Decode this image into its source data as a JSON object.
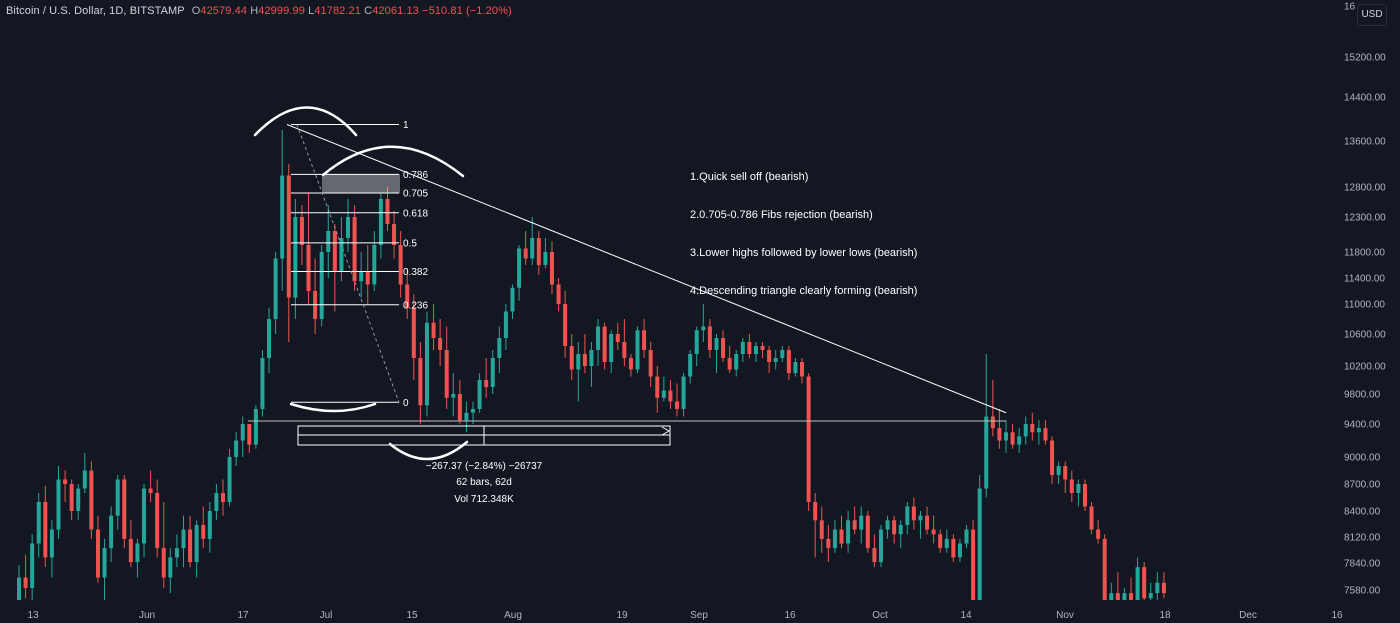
{
  "header": {
    "symbol": "Bitcoin / U.S. Dollar, 1D, BITSTAMP",
    "open_key": "O",
    "open": "42579.44",
    "high_key": "H",
    "high": "42999.99",
    "low_key": "L",
    "low": "41782.21",
    "close_key": "C",
    "close": "42061.13",
    "change": "−510.81 (−1.20%)"
  },
  "currency_button": "USD",
  "notes": [
    "1.Quick sell off (bearish)",
    "2.0.705-0.786 Fibs rejection (bearish)",
    "3.Lower highs followed by lower lows (bearish)",
    "4.Descending triangle clearly forming (bearish)"
  ],
  "measure": {
    "line1": "−267.37 (−2.84%) −26737",
    "line2": "62 bars, 62d",
    "line3": "Vol 712.348K"
  },
  "colors": {
    "background": "#131722",
    "up": "#26a69a",
    "down": "#ef5350",
    "drawing": "#ffffff",
    "axis_text": "#b2b5be"
  },
  "chart_data": {
    "type": "candlestick",
    "y_axis": {
      "position": "right",
      "scale": "log",
      "ticks": [
        "16",
        "15200.00",
        "14400.00",
        "13600.00",
        "12800.00",
        "12300.00",
        "11800.00",
        "11400.00",
        "11000.00",
        "10600.00",
        "10200.00",
        "9800.00",
        "9400.00",
        "9000.00",
        "8700.00",
        "8400.00",
        "8120.00",
        "7840.00",
        "7580.00"
      ],
      "range": [
        7450,
        16800
      ]
    },
    "x_axis": {
      "ticks": [
        "13",
        "Jun",
        "17",
        "Jul",
        "15",
        "Aug",
        "19",
        "Sep",
        "16",
        "Oct",
        "14",
        "Nov",
        "18",
        "Dec",
        "16"
      ]
    },
    "fib_levels": [
      {
        "label": "1",
        "price": 13900
      },
      {
        "label": "0.786",
        "price": 13020
      },
      {
        "label": "0.705",
        "price": 12700
      },
      {
        "label": "0.618",
        "price": 12370
      },
      {
        "label": "0.5",
        "price": 11930
      },
      {
        "label": "0.382",
        "price": 11500
      },
      {
        "label": "0.236",
        "price": 10990
      },
      {
        "label": "0",
        "price": 9690
      }
    ],
    "support_price": 9440,
    "triangle_line": {
      "start_price": 13900,
      "end_price": 9550
    },
    "candles_ohlc_approx": [
      [
        7420,
        7820,
        7350,
        7700
      ],
      [
        7700,
        7930,
        7500,
        7600
      ],
      [
        7600,
        8150,
        7450,
        8050
      ],
      [
        8050,
        8600,
        7900,
        8500
      ],
      [
        8500,
        8680,
        7800,
        7900
      ],
      [
        7900,
        8300,
        7700,
        8200
      ],
      [
        8200,
        8900,
        8100,
        8750
      ],
      [
        8750,
        8850,
        8500,
        8700
      ],
      [
        8700,
        8750,
        8300,
        8400
      ],
      [
        8400,
        8700,
        8300,
        8650
      ],
      [
        8650,
        9050,
        8600,
        8850
      ],
      [
        8850,
        8950,
        8100,
        8200
      ],
      [
        8200,
        8350,
        7650,
        7700
      ],
      [
        7700,
        8100,
        7450,
        8000
      ],
      [
        8000,
        8450,
        7850,
        8350
      ],
      [
        8350,
        8800,
        8200,
        8750
      ],
      [
        8750,
        8800,
        8000,
        8100
      ],
      [
        8100,
        8300,
        7800,
        7850
      ],
      [
        7850,
        8100,
        7700,
        8050
      ],
      [
        8050,
        8700,
        7900,
        8650
      ],
      [
        8650,
        8850,
        8500,
        8600
      ],
      [
        8600,
        8750,
        7900,
        8000
      ],
      [
        8000,
        8500,
        7600,
        7700
      ],
      [
        7700,
        8000,
        7550,
        7900
      ],
      [
        7900,
        8150,
        7800,
        8000
      ],
      [
        8000,
        8350,
        7800,
        8200
      ],
      [
        8200,
        8350,
        7800,
        7850
      ],
      [
        7850,
        8300,
        7700,
        8250
      ],
      [
        8250,
        8450,
        8000,
        8100
      ],
      [
        8100,
        8500,
        7950,
        8400
      ],
      [
        8400,
        8700,
        8300,
        8600
      ],
      [
        8600,
        8750,
        8350,
        8500
      ],
      [
        8500,
        9100,
        8450,
        9000
      ],
      [
        9000,
        9300,
        8900,
        9200
      ],
      [
        9200,
        9500,
        9000,
        9400
      ],
      [
        9400,
        9350,
        9050,
        9150
      ],
      [
        9150,
        9650,
        9100,
        9600
      ],
      [
        9600,
        10400,
        9500,
        10300
      ],
      [
        10300,
        10950,
        10100,
        10800
      ],
      [
        10800,
        11800,
        10600,
        11700
      ],
      [
        11700,
        13800,
        11200,
        13000
      ],
      [
        13000,
        13200,
        10500,
        11100
      ],
      [
        11100,
        12600,
        10800,
        12300
      ],
      [
        12300,
        12500,
        11600,
        11900
      ],
      [
        11900,
        12700,
        11000,
        11200
      ],
      [
        11200,
        11700,
        10600,
        10800
      ],
      [
        10800,
        11900,
        10700,
        11800
      ],
      [
        11800,
        12500,
        11400,
        12100
      ],
      [
        12100,
        12200,
        10900,
        11500
      ],
      [
        11500,
        12300,
        11350,
        12000
      ],
      [
        12000,
        12600,
        11800,
        12300
      ],
      [
        12300,
        12500,
        11200,
        11350
      ],
      [
        11350,
        11800,
        11100,
        11500
      ],
      [
        11500,
        11900,
        11000,
        11300
      ],
      [
        11300,
        12100,
        11200,
        11900
      ],
      [
        11900,
        12700,
        11700,
        12600
      ],
      [
        12600,
        12800,
        12100,
        12200
      ],
      [
        12200,
        12400,
        11700,
        11900
      ],
      [
        11900,
        12100,
        11100,
        11300
      ],
      [
        11300,
        11550,
        10800,
        10950
      ],
      [
        10950,
        11150,
        10000,
        10300
      ],
      [
        10300,
        10500,
        9400,
        9650
      ],
      [
        9650,
        10900,
        9500,
        10750
      ],
      [
        10750,
        11000,
        10400,
        10550
      ],
      [
        10550,
        10800,
        10200,
        10400
      ],
      [
        10400,
        10700,
        9600,
        9750
      ],
      [
        9750,
        10100,
        9500,
        9800
      ],
      [
        9800,
        10000,
        9400,
        9450
      ],
      [
        9450,
        9700,
        9300,
        9550
      ],
      [
        9550,
        9700,
        9400,
        9600
      ],
      [
        9600,
        10100,
        9550,
        10000
      ],
      [
        10000,
        10300,
        9750,
        9900
      ],
      [
        9900,
        10400,
        9800,
        10300
      ],
      [
        10300,
        10700,
        10100,
        10550
      ],
      [
        10550,
        11000,
        10400,
        10900
      ],
      [
        10900,
        11300,
        10800,
        11250
      ],
      [
        11250,
        11900,
        11050,
        11850
      ],
      [
        11850,
        12100,
        11600,
        11700
      ],
      [
        11700,
        12300,
        11600,
        12000
      ],
      [
        12000,
        12100,
        11450,
        11600
      ],
      [
        11600,
        12000,
        11550,
        11800
      ],
      [
        11800,
        11950,
        11150,
        11300
      ],
      [
        11300,
        11400,
        10900,
        11000
      ],
      [
        11000,
        11200,
        10300,
        10450
      ],
      [
        10450,
        10600,
        10000,
        10150
      ],
      [
        10150,
        10500,
        9700,
        10350
      ],
      [
        10350,
        10600,
        10100,
        10200
      ],
      [
        10200,
        10500,
        9900,
        10400
      ],
      [
        10400,
        10800,
        10200,
        10700
      ],
      [
        10700,
        10750,
        10150,
        10250
      ],
      [
        10250,
        10650,
        10100,
        10600
      ],
      [
        10600,
        10750,
        10400,
        10500
      ],
      [
        10500,
        10800,
        10200,
        10300
      ],
      [
        10300,
        10350,
        10050,
        10150
      ],
      [
        10150,
        10700,
        10100,
        10650
      ],
      [
        10650,
        10800,
        10300,
        10400
      ],
      [
        10400,
        10500,
        9900,
        10050
      ],
      [
        10050,
        10200,
        9550,
        9750
      ],
      [
        9750,
        10050,
        9700,
        9850
      ],
      [
        9850,
        10000,
        9600,
        9700
      ],
      [
        9700,
        9950,
        9500,
        9600
      ],
      [
        9600,
        10100,
        9500,
        10050
      ],
      [
        10050,
        10400,
        9950,
        10350
      ],
      [
        10350,
        10700,
        10200,
        10650
      ],
      [
        10650,
        11000,
        10500,
        10700
      ],
      [
        10700,
        10800,
        10300,
        10400
      ],
      [
        10400,
        10600,
        10100,
        10550
      ],
      [
        10550,
        10650,
        10250,
        10300
      ],
      [
        10300,
        10450,
        10100,
        10150
      ],
      [
        10150,
        10400,
        10050,
        10350
      ],
      [
        10350,
        10550,
        10250,
        10500
      ],
      [
        10500,
        10600,
        10300,
        10350
      ],
      [
        10350,
        10500,
        10250,
        10450
      ],
      [
        10450,
        10500,
        10300,
        10400
      ],
      [
        10400,
        10450,
        10100,
        10250
      ],
      [
        10250,
        10400,
        10150,
        10300
      ],
      [
        10300,
        10450,
        10250,
        10400
      ],
      [
        10400,
        10450,
        10000,
        10100
      ],
      [
        10100,
        10300,
        10050,
        10250
      ],
      [
        10250,
        10300,
        9950,
        10050
      ],
      [
        10050,
        10100,
        8400,
        8500
      ],
      [
        8500,
        8600,
        7900,
        8300
      ],
      [
        8300,
        8450,
        7950,
        8100
      ],
      [
        8100,
        8250,
        7850,
        8000
      ],
      [
        8000,
        8300,
        7950,
        8200
      ],
      [
        8200,
        8350,
        8000,
        8050
      ],
      [
        8050,
        8400,
        7950,
        8300
      ],
      [
        8300,
        8450,
        8150,
        8200
      ],
      [
        8200,
        8450,
        8050,
        8350
      ],
      [
        8350,
        8400,
        7950,
        8000
      ],
      [
        8000,
        8150,
        7800,
        7850
      ],
      [
        7850,
        8250,
        7800,
        8200
      ],
      [
        8200,
        8350,
        8100,
        8300
      ],
      [
        8300,
        8350,
        8050,
        8150
      ],
      [
        8150,
        8300,
        8000,
        8250
      ],
      [
        8250,
        8500,
        8150,
        8450
      ],
      [
        8450,
        8550,
        8200,
        8300
      ],
      [
        8300,
        8400,
        8100,
        8350
      ],
      [
        8350,
        8450,
        8150,
        8200
      ],
      [
        8200,
        8350,
        8050,
        8150
      ],
      [
        8150,
        8200,
        7950,
        8000
      ],
      [
        8000,
        8200,
        7950,
        8100
      ],
      [
        8100,
        8150,
        7850,
        7900
      ],
      [
        7900,
        8100,
        7850,
        8050
      ],
      [
        8050,
        8250,
        8000,
        8200
      ],
      [
        8200,
        8300,
        7350,
        7400
      ],
      [
        7400,
        8800,
        7350,
        8650
      ],
      [
        8650,
        10350,
        8550,
        9500
      ],
      [
        9500,
        10000,
        9250,
        9350
      ],
      [
        9350,
        9600,
        9100,
        9200
      ],
      [
        9200,
        9450,
        9050,
        9300
      ],
      [
        9300,
        9400,
        9100,
        9150
      ],
      [
        9150,
        9350,
        9050,
        9250
      ],
      [
        9250,
        9500,
        9150,
        9400
      ],
      [
        9400,
        9550,
        9200,
        9300
      ],
      [
        9300,
        9450,
        9150,
        9350
      ],
      [
        9350,
        9450,
        9150,
        9200
      ],
      [
        9200,
        9250,
        8700,
        8800
      ],
      [
        8800,
        8950,
        8700,
        8900
      ],
      [
        8900,
        8950,
        8600,
        8750
      ],
      [
        8750,
        8850,
        8500,
        8600
      ],
      [
        8600,
        8750,
        8450,
        8700
      ],
      [
        8700,
        8750,
        8400,
        8450
      ],
      [
        8450,
        8500,
        8150,
        8200
      ],
      [
        8200,
        8300,
        8050,
        8100
      ],
      [
        8100,
        8150,
        7300,
        7400
      ],
      [
        7400,
        7650,
        7300,
        7550
      ],
      [
        7550,
        7750,
        7350,
        7450
      ],
      [
        7450,
        7600,
        7350,
        7550
      ],
      [
        7550,
        7700,
        7350,
        7450
      ],
      [
        7450,
        7900,
        7400,
        7800
      ],
      [
        7800,
        7850,
        7450,
        7500
      ],
      [
        7500,
        7650,
        7400,
        7550
      ],
      [
        7550,
        7750,
        7450,
        7650
      ],
      [
        7650,
        7750,
        7500,
        7550
      ]
    ]
  }
}
